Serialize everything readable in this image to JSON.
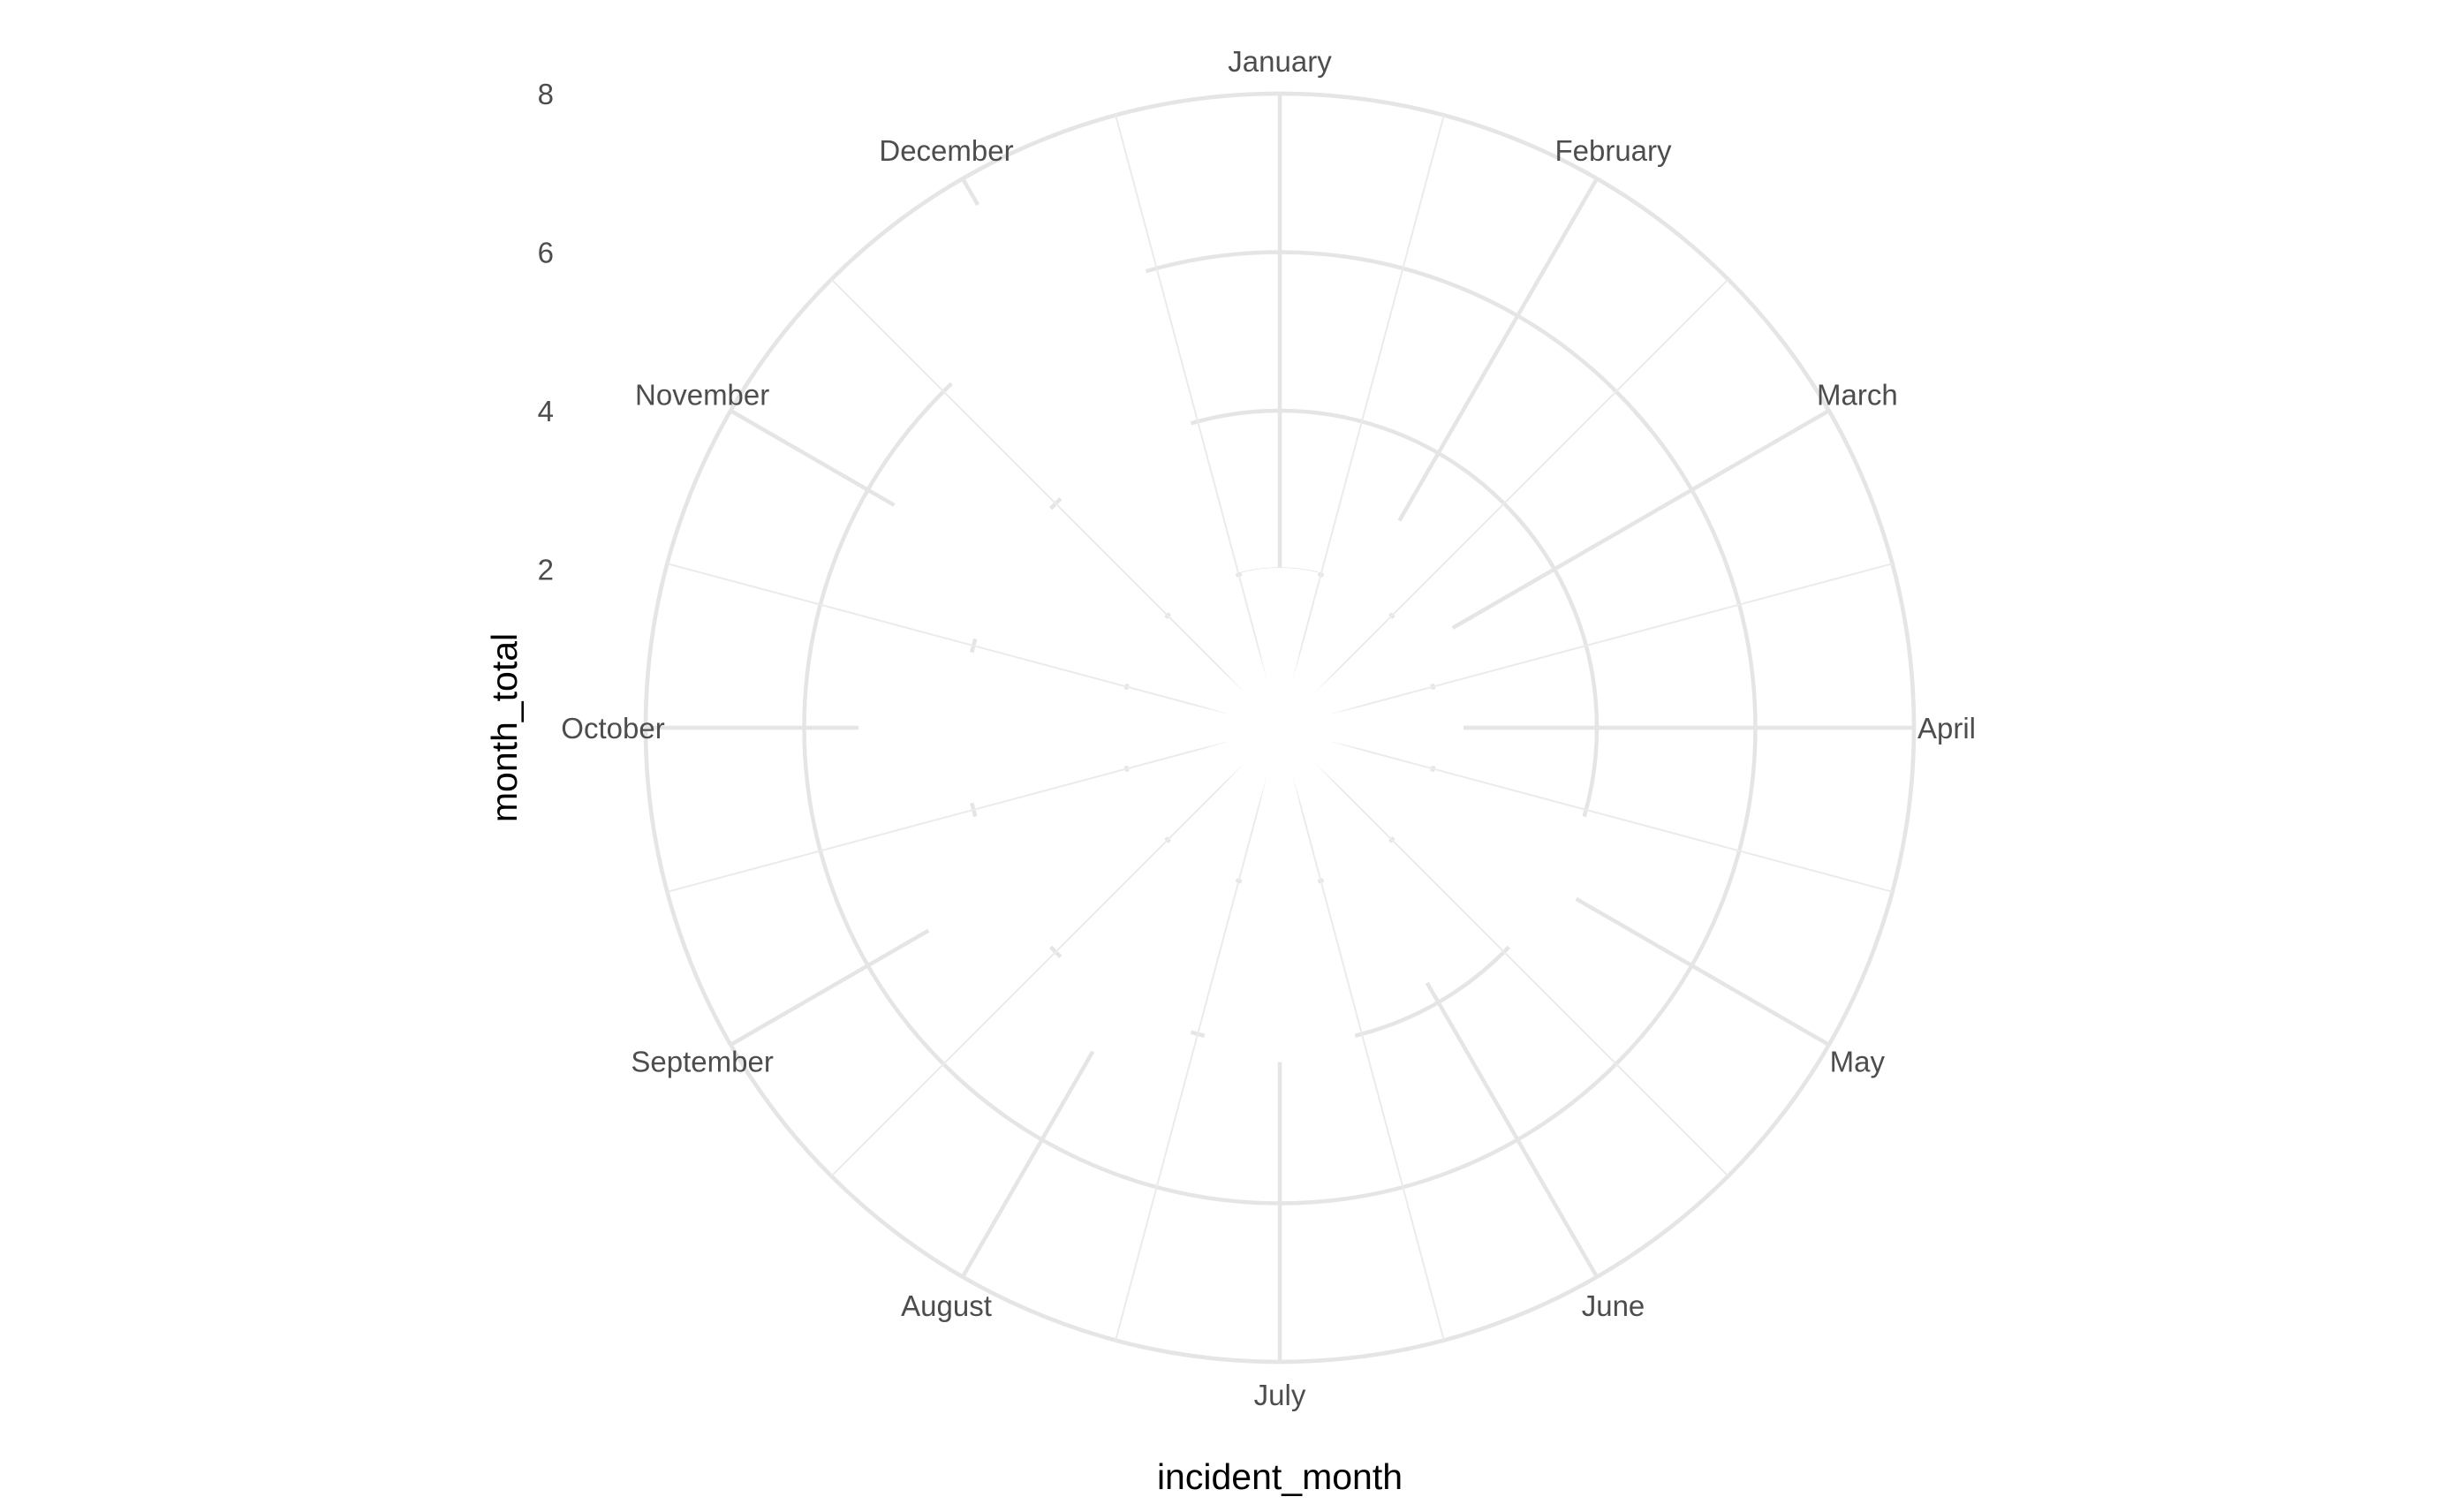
{
  "chart_data": {
    "type": "bar",
    "coord": "polar",
    "xlabel": "incident_month",
    "ylabel": "month_total",
    "categories": [
      "January",
      "February",
      "March",
      "April",
      "May",
      "June",
      "July",
      "August",
      "September",
      "October",
      "November",
      "December"
    ],
    "series": [
      {
        "values": [
          2,
          3,
          2.5,
          2.3,
          4.3,
          3.7,
          4.2,
          4.7,
          5.1,
          5.3,
          5.6,
          7.6
        ]
      }
    ],
    "y_ticks": [
      "2",
      "4",
      "6",
      "8"
    ],
    "ylim": [
      0,
      8
    ],
    "grid": true,
    "colors": {
      "bars": "#ffffff",
      "grid": "#e5e5e5",
      "background": "#ffffff"
    }
  }
}
